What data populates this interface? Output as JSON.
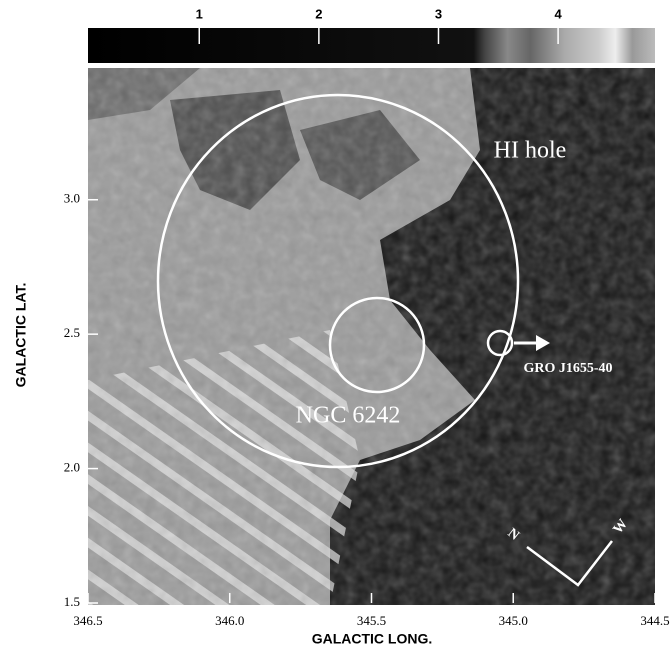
{
  "chart_data": {
    "type": "image",
    "xlabel": "GALACTIC LONG.",
    "ylabel": "GALACTIC LAT.",
    "xlim": [
      346.5,
      344.5
    ],
    "ylim": [
      1.5,
      3.49
    ],
    "xticks": [
      346.5,
      {
        "value": 346,
        "label": "346.0"
      },
      345.5,
      {
        "value": 345,
        "label": "345.0"
      },
      344.5
    ],
    "yticks": [
      1.5,
      {
        "value": 2,
        "label": "2.0"
      },
      2.5,
      {
        "value": 3,
        "label": "3.0"
      }
    ],
    "colorbar": {
      "lim": [
        0.07,
        4.81
      ],
      "ticks": [
        1,
        2,
        3,
        4
      ]
    },
    "annotations": [
      "HI hole",
      "NGC 6242",
      "GRO J1655-40"
    ],
    "compass": [
      "N",
      "W"
    ]
  }
}
